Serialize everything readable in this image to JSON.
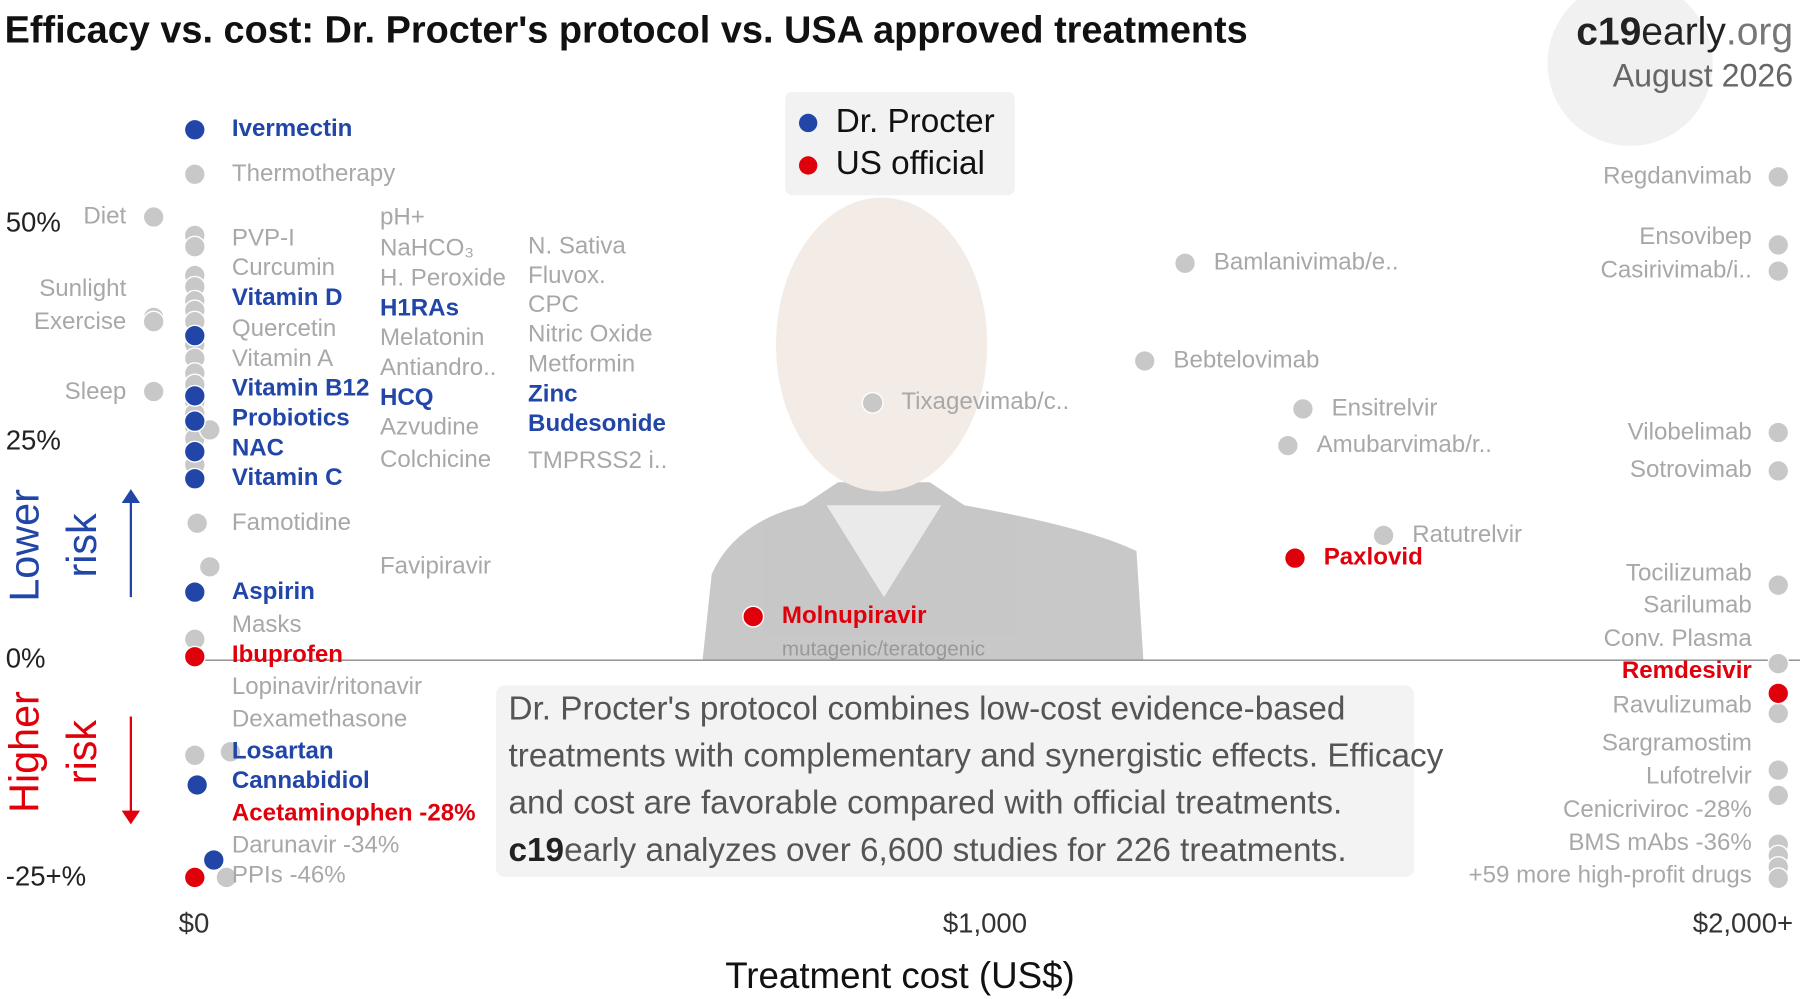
{
  "chart_data": {
    "type": "scatter",
    "title": "Efficacy vs. cost: Dr. Procter's protocol vs. USA approved treatments",
    "brand": [
      "c19",
      "early",
      ".org"
    ],
    "date": "August 2026",
    "xlabel": "Treatment cost (US$)",
    "xlim": [
      -100,
      2020
    ],
    "ylim": [
      -25,
      65
    ],
    "xticks": [
      {
        "value": 0,
        "label": "$0"
      },
      {
        "value": 1000,
        "label": "$1,000"
      },
      {
        "value": 2000,
        "label": "$2,000+"
      }
    ],
    "yticks": [
      {
        "value": 50,
        "label": "50%"
      },
      {
        "value": 25,
        "label": "25%"
      },
      {
        "value": 0,
        "label": "0%"
      },
      {
        "value": -25,
        "label": "-25+%"
      }
    ],
    "zero_line": true,
    "lower_risk": [
      "Lower",
      "risk"
    ],
    "higher_risk": [
      "Higher",
      "risk"
    ],
    "series": [
      {
        "name": "Dr. Procter",
        "color": "#2146a8",
        "points": [
          {
            "x": 1,
            "y": 60.8
          },
          {
            "x": 1,
            "y": 37.2
          },
          {
            "x": 1,
            "y": 30.3
          },
          {
            "x": 1,
            "y": 27.4
          },
          {
            "x": 1,
            "y": 23.9
          },
          {
            "x": 1,
            "y": 20.8
          },
          {
            "x": 1,
            "y": 7.8
          },
          {
            "x": 4,
            "y": -14.3
          },
          {
            "x": 25,
            "y": -22.9
          }
        ]
      },
      {
        "name": "US official",
        "color": "#e0000c",
        "points": [
          {
            "x": 1,
            "y": 0.4
          },
          {
            "x": 1,
            "y": -24.9
          },
          {
            "x": 707,
            "y": 5.0,
            "label": "Molnupiravir",
            "note": "mutagenic/teratogenic"
          },
          {
            "x": 1392,
            "y": 11.7,
            "label": "Paxlovid"
          },
          {
            "x": 2003,
            "y": -3.8
          }
        ]
      },
      {
        "color": "#c8c8c8",
        "label_color": "#a8a8a8",
        "points": [
          {
            "x": 1,
            "y": 55.7
          },
          {
            "x": 1,
            "y": 48.7
          },
          {
            "x": 1,
            "y": 47.4
          },
          {
            "x": 1,
            "y": 44.1
          },
          {
            "x": 1,
            "y": 42.8
          },
          {
            "x": 1,
            "y": 41.2
          },
          {
            "x": 1,
            "y": 40.1
          },
          {
            "x": 1,
            "y": 38.8
          },
          {
            "x": 1,
            "y": 36.2
          },
          {
            "x": 1,
            "y": 34.6
          },
          {
            "x": 1,
            "y": 32.9
          },
          {
            "x": 1,
            "y": 31.6
          },
          {
            "x": 1,
            "y": 29.6
          },
          {
            "x": 1,
            "y": 28.3
          },
          {
            "x": 1,
            "y": 26.7
          },
          {
            "x": 1,
            "y": 25.4
          },
          {
            "x": 1,
            "y": 22.4
          },
          {
            "x": 4,
            "y": 15.7
          },
          {
            "x": 1,
            "y": 2.4
          },
          {
            "x": 1,
            "y": -10.9
          },
          {
            "x": 20,
            "y": 26.4
          },
          {
            "x": 20,
            "y": 10.7
          },
          {
            "x": 46,
            "y": -10.5
          },
          {
            "x": 41,
            "y": -24.9
          },
          {
            "x": -51,
            "y": 50.8
          },
          {
            "x": -51,
            "y": 39.3
          },
          {
            "x": -51,
            "y": 38.8
          },
          {
            "x": -51,
            "y": 30.8
          },
          {
            "x": 1253,
            "y": 45.5,
            "label": "Bamlanivimab/e.."
          },
          {
            "x": 1202,
            "y": 34.3,
            "label": "Bebtelovimab"
          },
          {
            "x": 858,
            "y": 29.5,
            "label": "Tixagevimab/c.."
          },
          {
            "x": 1402,
            "y": 28.8,
            "label": "Ensitrelvir"
          },
          {
            "x": 1383,
            "y": 24.6,
            "label": "Amubarvimab/r.."
          },
          {
            "x": 1504,
            "y": 14.3,
            "label": "Ratutrelvir"
          },
          {
            "x": 2003,
            "y": 55.4
          },
          {
            "x": 2003,
            "y": 47.6
          },
          {
            "x": 2003,
            "y": 44.6
          },
          {
            "x": 2003,
            "y": 26.1
          },
          {
            "x": 2003,
            "y": 21.7
          },
          {
            "x": 2003,
            "y": 8.6
          },
          {
            "x": 2003,
            "y": -0.4
          },
          {
            "x": 2003,
            "y": -6.1
          },
          {
            "x": 2003,
            "y": -12.6
          },
          {
            "x": 2003,
            "y": -15.5
          },
          {
            "x": 2003,
            "y": -21.1
          },
          {
            "x": 2003,
            "y": -22.4
          },
          {
            "x": 2003,
            "y": -23.7
          },
          {
            "x": 2003,
            "y": -25
          }
        ]
      }
    ],
    "label_columns": [
      {
        "items": [
          {
            "label": "Ivermectin",
            "series": 0
          },
          {
            "label": "Thermotherapy",
            "series": 2
          },
          {
            "label": "PVP-I",
            "series": 2
          },
          {
            "label": "Curcumin",
            "series": 2
          },
          {
            "label": "Vitamin D",
            "series": 0
          },
          {
            "label": "Quercetin",
            "series": 2
          },
          {
            "label": "Vitamin A",
            "series": 2
          },
          {
            "label": "Vitamin B12",
            "series": 0
          },
          {
            "label": "Probiotics",
            "series": 0
          },
          {
            "label": "NAC",
            "series": 0
          },
          {
            "label": "Vitamin C",
            "series": 0
          },
          {
            "label": "Famotidine",
            "series": 2
          },
          {
            "label": "Aspirin",
            "series": 0
          },
          {
            "label": "Masks",
            "series": 2
          },
          {
            "label": "Ibuprofen",
            "series": 1
          },
          {
            "label": "Lopinavir/ritonavir",
            "series": 2
          },
          {
            "label": "Dexamethasone",
            "series": 2
          },
          {
            "label": "Losartan",
            "series": 0
          },
          {
            "label": "Cannabidiol",
            "series": 0
          },
          {
            "label": "Acetaminophen -28%",
            "series": 1
          },
          {
            "label": "Darunavir -34%",
            "series": 2
          },
          {
            "label": "PPIs -46%",
            "series": 2
          }
        ]
      },
      {
        "items": [
          {
            "label": "pH+",
            "series": 2
          },
          {
            "label": "NaHCO₃",
            "series": 2
          },
          {
            "label": "H. Peroxide",
            "series": 2
          },
          {
            "label": "H1RAs",
            "series": 0
          },
          {
            "label": "Melatonin",
            "series": 2
          },
          {
            "label": "Antiandro..",
            "series": 2
          },
          {
            "label": "HCQ",
            "series": 0
          },
          {
            "label": "Azvudine",
            "series": 2
          },
          {
            "label": "Colchicine",
            "series": 2
          },
          {
            "label": "Favipiravir",
            "series": 2
          }
        ]
      },
      {
        "items": [
          {
            "label": "N. Sativa",
            "series": 2
          },
          {
            "label": "Fluvox.",
            "series": 2
          },
          {
            "label": "CPC",
            "series": 2
          },
          {
            "label": "Nitric Oxide",
            "series": 2
          },
          {
            "label": "Metformin",
            "series": 2
          },
          {
            "label": "Zinc",
            "series": 0
          },
          {
            "label": "Budesonide",
            "series": 0
          },
          {
            "label": "TMPRSS2 i..",
            "series": 2
          }
        ]
      },
      {
        "items": [
          {
            "label": "Regdanvimab",
            "series": 2
          },
          {
            "label": "Ensovibep",
            "series": 2
          },
          {
            "label": "Casirivimab/i..",
            "series": 2
          },
          {
            "label": "Vilobelimab",
            "series": 2
          },
          {
            "label": "Sotrovimab",
            "series": 2
          },
          {
            "label": "Tocilizumab",
            "series": 2
          },
          {
            "label": "Sarilumab",
            "series": 2
          },
          {
            "label": "Conv. Plasma",
            "series": 2
          },
          {
            "label": "Remdesivir",
            "series": 1
          },
          {
            "label": "Ravulizumab",
            "series": 2
          },
          {
            "label": "Sargramostim",
            "series": 2
          },
          {
            "label": "Lufotrelvir",
            "series": 2
          },
          {
            "label": "Cenicriviroc -28%",
            "series": 2
          },
          {
            "label": "BMS mAbs -36%",
            "series": 2
          },
          {
            "label": "+59 more high-profit drugs",
            "series": 2
          }
        ]
      },
      {
        "items": [
          {
            "label": "Diet",
            "series": 2
          },
          {
            "label": "Sunlight",
            "series": 2
          },
          {
            "label": "Exercise",
            "series": 2
          },
          {
            "label": "Sleep",
            "series": 2
          }
        ]
      }
    ],
    "annotation": {
      "lines": [
        "Dr. Procter's protocol combines low-cost evidence-based",
        "treatments with complementary and synergistic effects. Efficacy",
        "and cost are favorable compared with official treatments."
      ],
      "last": [
        "c19",
        "early analyzes over 6,600 studies for 226 treatments."
      ]
    }
  }
}
